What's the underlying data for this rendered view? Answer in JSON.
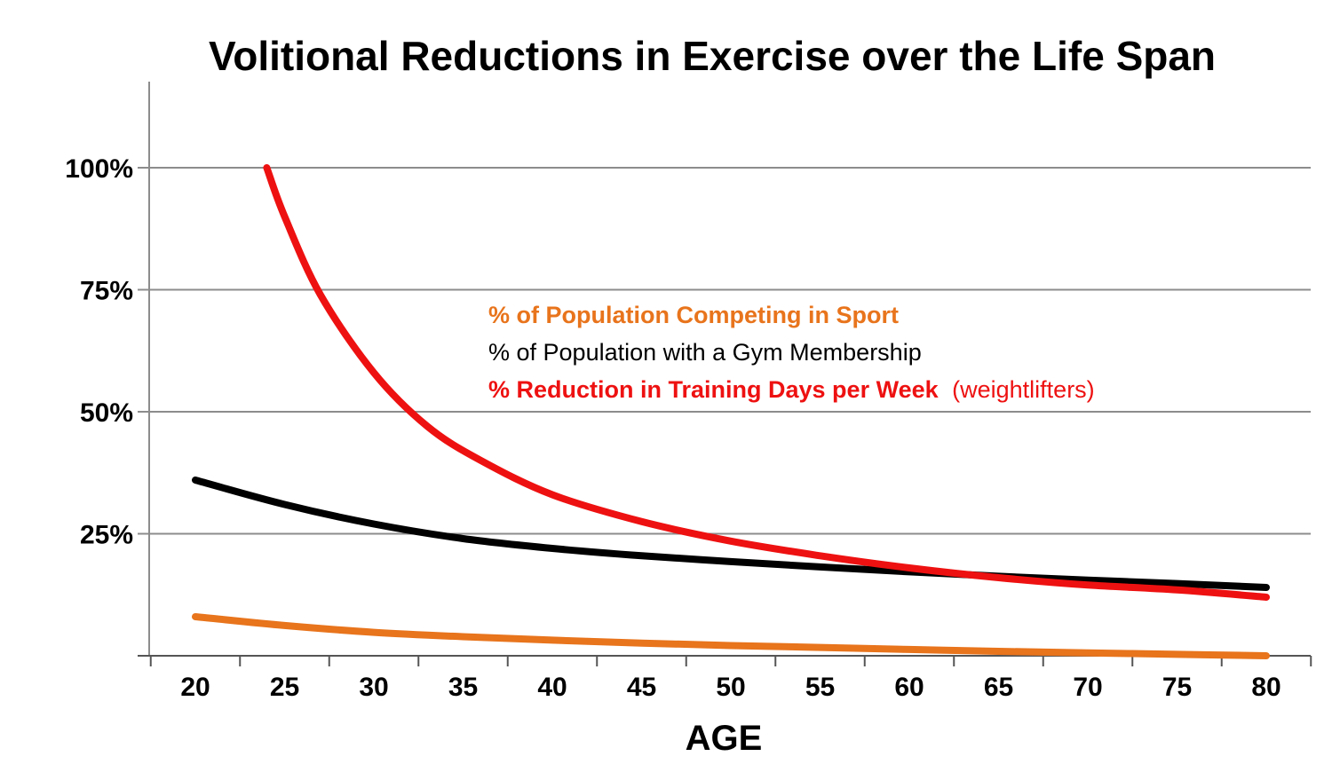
{
  "chart_data": {
    "type": "line",
    "title": "Volitional Reductions in Exercise over the Life Span",
    "xlabel": "AGE",
    "ylabel": "",
    "xlim": [
      17.5,
      82.5
    ],
    "ylim": [
      0,
      115
    ],
    "x_ticks": [
      20,
      25,
      30,
      35,
      40,
      45,
      50,
      55,
      60,
      65,
      70,
      75,
      80
    ],
    "x_tick_labels": [
      "20",
      "25",
      "30",
      "35",
      "40",
      "45",
      "50",
      "55",
      "60",
      "65",
      "70",
      "75",
      "80"
    ],
    "y_ticks": [
      25,
      50,
      75,
      100
    ],
    "y_tick_labels": [
      "25%",
      "50%",
      "75%",
      "100%"
    ],
    "grid": "horizontal",
    "legend_placement": "center-right (inside plot)",
    "series": [
      {
        "name": "% of Population Competing in Sport",
        "color": "#e8741c",
        "x": [
          20,
          25,
          30,
          35,
          40,
          45,
          50,
          55,
          60,
          65,
          70,
          75,
          80
        ],
        "y": [
          8,
          6.2,
          4.8,
          3.9,
          3.2,
          2.6,
          2.1,
          1.7,
          1.3,
          0.9,
          0.6,
          0.3,
          0
        ]
      },
      {
        "name": "% of Population with a Gym Membership",
        "color": "#000000",
        "x": [
          20,
          25,
          30,
          35,
          40,
          45,
          50,
          55,
          60,
          65,
          70,
          75,
          80
        ],
        "y": [
          36,
          31,
          27,
          24,
          22,
          20.5,
          19.3,
          18.2,
          17.2,
          16.3,
          15.5,
          14.8,
          14
        ]
      },
      {
        "name": "% Reduction in Training Days per Week",
        "name_suffix": "(weightlifters)",
        "color": "#ee1111",
        "x": [
          24,
          25,
          27,
          30,
          33,
          36,
          40,
          45,
          50,
          55,
          60,
          65,
          70,
          75,
          80
        ],
        "y": [
          100,
          90,
          74,
          58,
          47,
          40,
          33,
          27.5,
          23.5,
          20.5,
          18,
          16,
          14.5,
          13.5,
          12
        ]
      }
    ]
  }
}
